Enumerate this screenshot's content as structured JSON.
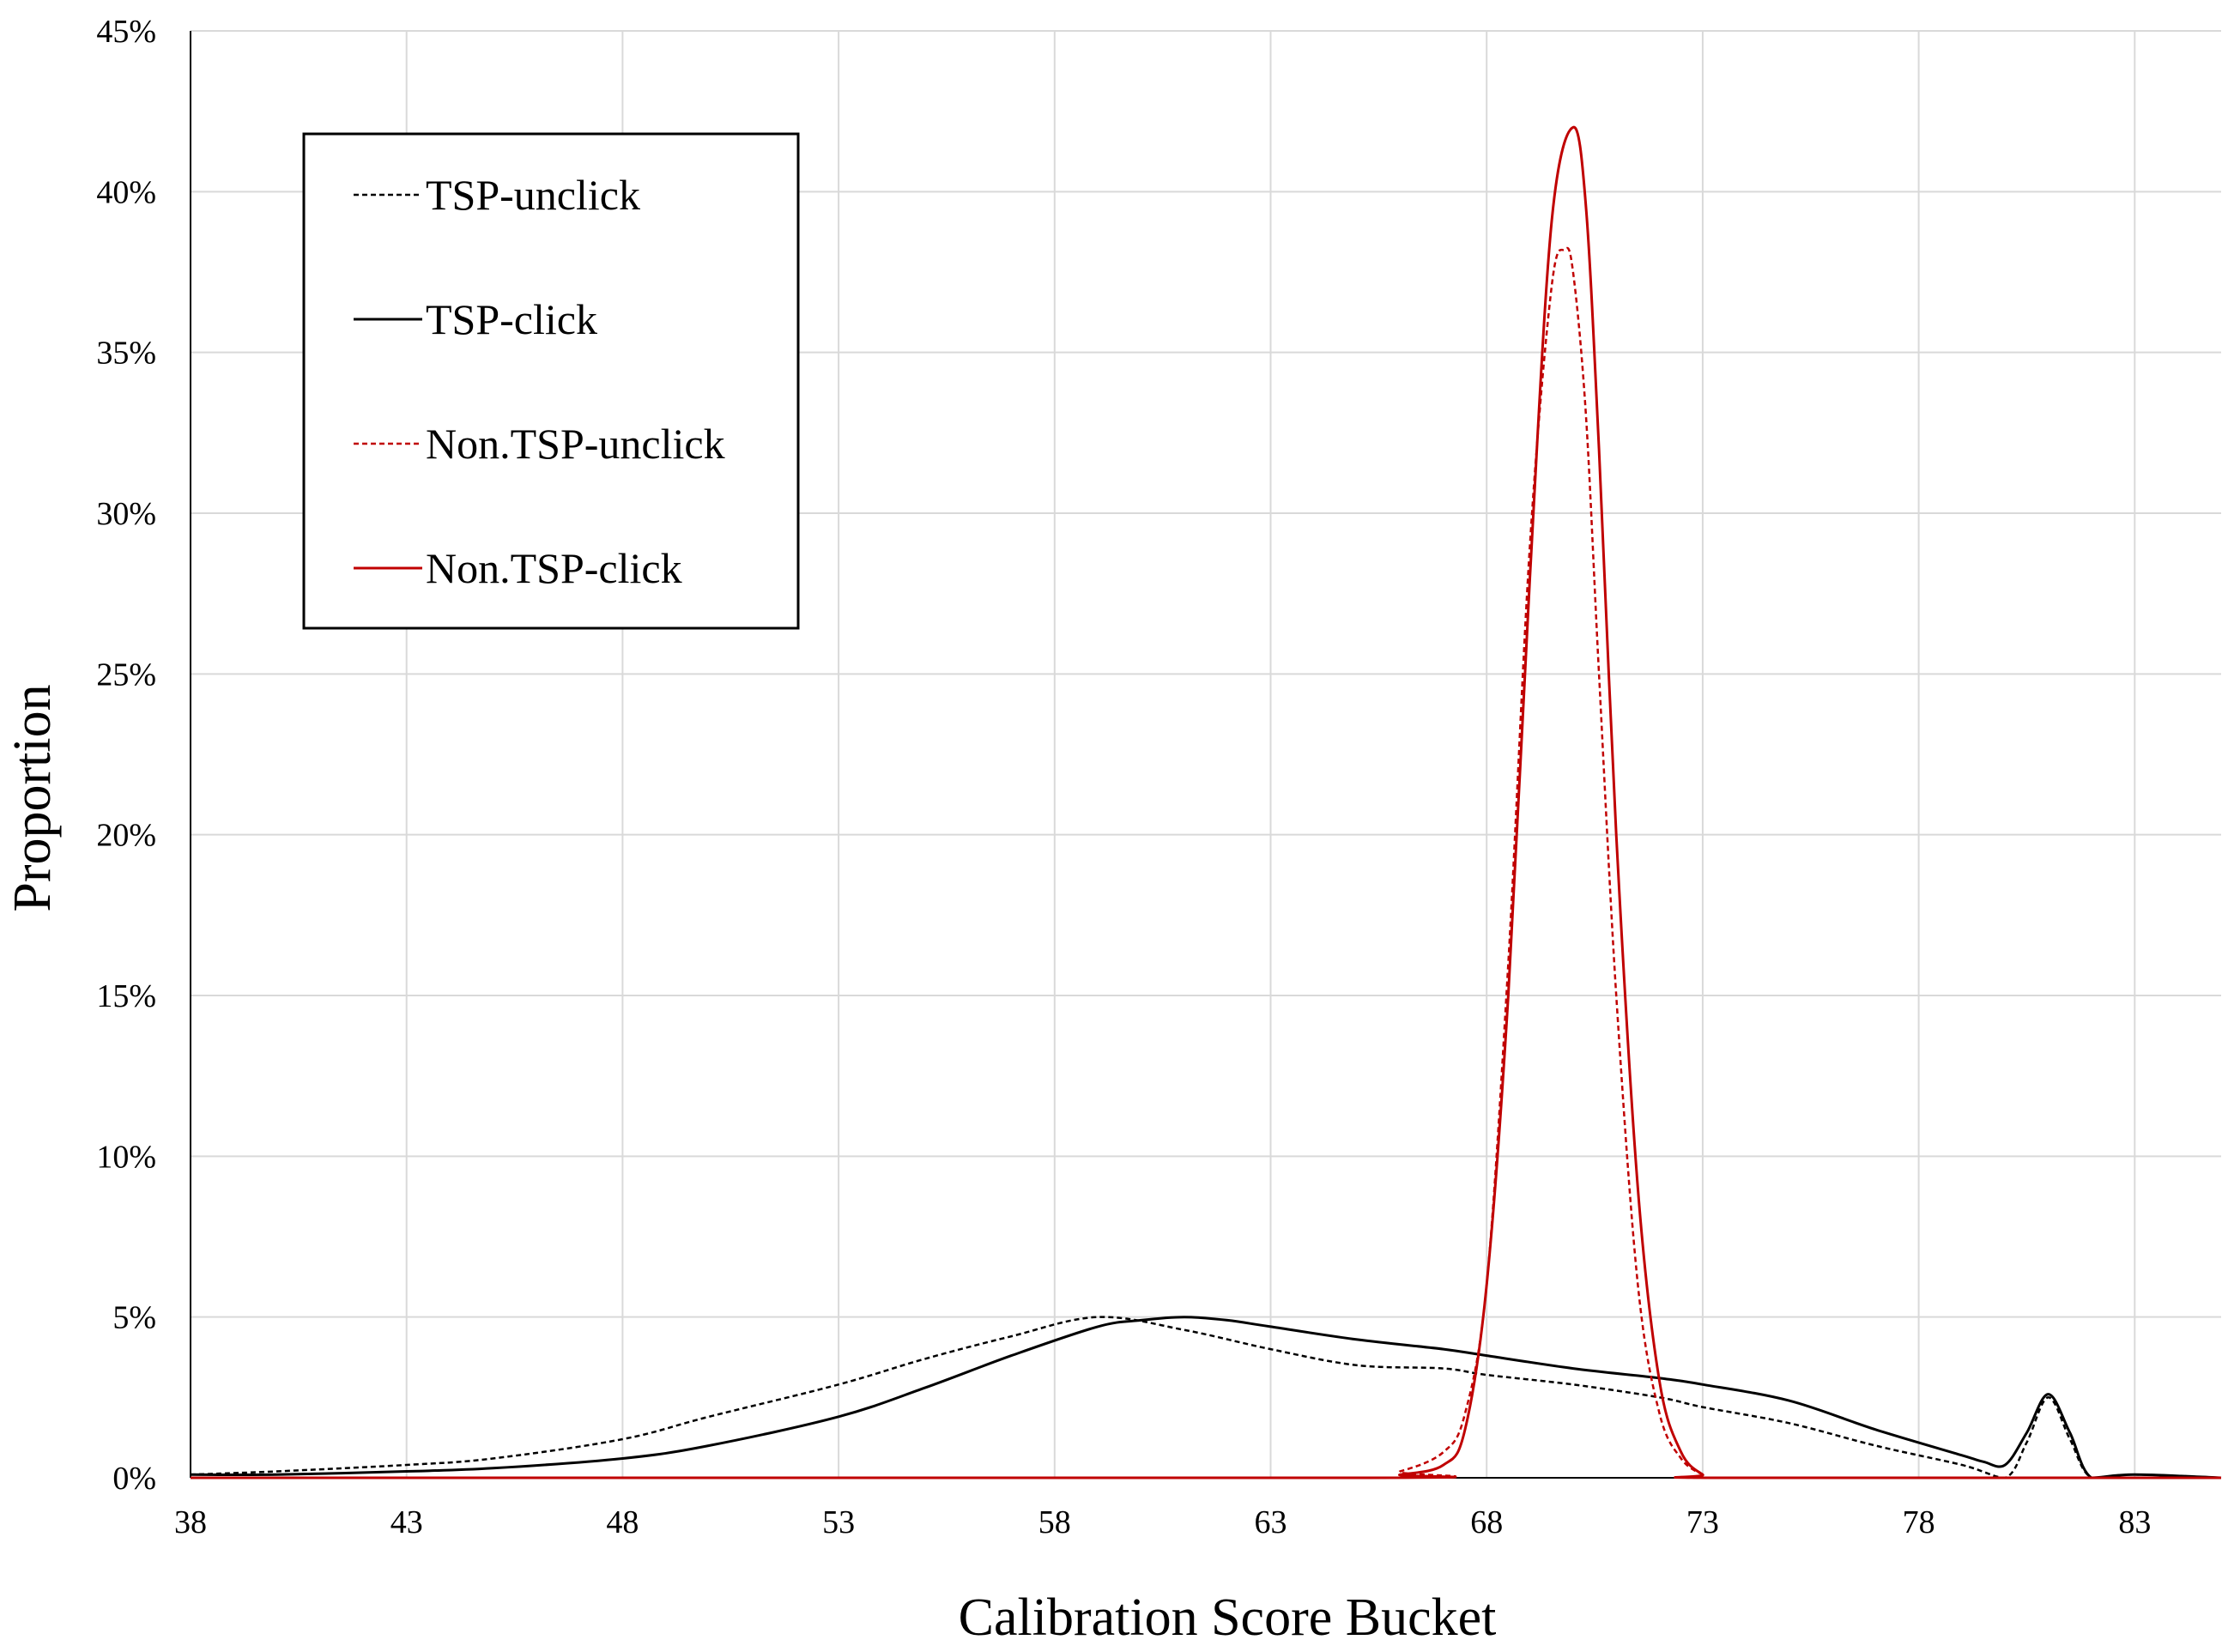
{
  "chart_data": {
    "type": "line",
    "title": "",
    "xlabel": "Calibration Score Bucket",
    "ylabel": "Proportion",
    "xlim": [
      38,
      85
    ],
    "ylim": [
      0,
      0.45
    ],
    "x_ticks": [
      38,
      43,
      48,
      53,
      58,
      63,
      68,
      73,
      78,
      83
    ],
    "x_tick_labels": [
      "38",
      "43",
      "48",
      "53",
      "58",
      "63",
      "68",
      "73",
      "78",
      "83"
    ],
    "y_ticks": [
      0,
      0.05,
      0.1,
      0.15,
      0.2,
      0.25,
      0.3,
      0.35,
      0.4,
      0.45
    ],
    "y_tick_labels": [
      "0%",
      "5%",
      "10%",
      "15%",
      "20%",
      "25%",
      "30%",
      "35%",
      "40%",
      "45%"
    ],
    "grid": true,
    "legend_position": "top-left",
    "series": [
      {
        "name": "TSP-unclick",
        "color": "#000000",
        "dashed": true,
        "x": [
          38,
          40,
          43,
          45,
          48,
          50,
          53,
          55,
          57,
          59,
          61,
          63,
          65,
          67,
          68,
          70,
          72,
          73,
          75,
          77,
          79,
          80,
          80.5,
          81,
          81.5,
          82,
          83,
          85
        ],
        "y": [
          0.001,
          0.002,
          0.004,
          0.006,
          0.012,
          0.019,
          0.029,
          0.037,
          0.044,
          0.05,
          0.046,
          0.04,
          0.035,
          0.034,
          0.032,
          0.029,
          0.025,
          0.022,
          0.017,
          0.01,
          0.004,
          0.0,
          0.011,
          0.025,
          0.012,
          0.0,
          0.001,
          0.0
        ]
      },
      {
        "name": "TSP-click",
        "color": "#000000",
        "dashed": false,
        "x": [
          38,
          40,
          43,
          45,
          48,
          50,
          53,
          55,
          57,
          59,
          60,
          61,
          62,
          63,
          65,
          67,
          68,
          70,
          72,
          73,
          75,
          77,
          79,
          79.5,
          80,
          80.5,
          81,
          81.5,
          82,
          83,
          85
        ],
        "y": [
          0.001,
          0.001,
          0.002,
          0.003,
          0.006,
          0.01,
          0.019,
          0.028,
          0.038,
          0.047,
          0.049,
          0.05,
          0.049,
          0.047,
          0.043,
          0.04,
          0.038,
          0.034,
          0.031,
          0.029,
          0.024,
          0.015,
          0.007,
          0.005,
          0.004,
          0.014,
          0.026,
          0.014,
          0.0,
          0.001,
          0.0
        ]
      },
      {
        "name": "Non.TSP-unclick",
        "color": "#c00000",
        "dashed": true,
        "x": [
          38,
          65,
          66,
          67,
          67.5,
          68,
          68.5,
          69,
          69.5,
          69.8,
          70,
          70.3,
          70.6,
          71,
          71.5,
          72,
          72.5,
          73,
          73.3,
          85
        ],
        "y": [
          0,
          0,
          0.002,
          0.008,
          0.02,
          0.06,
          0.16,
          0.29,
          0.37,
          0.382,
          0.375,
          0.33,
          0.25,
          0.15,
          0.06,
          0.02,
          0.006,
          0.001,
          0,
          0
        ]
      },
      {
        "name": "Non.TSP-click",
        "color": "#c00000",
        "dashed": false,
        "x": [
          38,
          65,
          66,
          67,
          67.5,
          68,
          68.5,
          69,
          69.5,
          70,
          70.3,
          70.6,
          71,
          71.5,
          72,
          72.5,
          73,
          73.3,
          85
        ],
        "y": [
          0,
          0,
          0.001,
          0.004,
          0.015,
          0.06,
          0.15,
          0.28,
          0.39,
          0.42,
          0.395,
          0.32,
          0.2,
          0.09,
          0.03,
          0.008,
          0.001,
          0,
          0
        ]
      }
    ]
  }
}
